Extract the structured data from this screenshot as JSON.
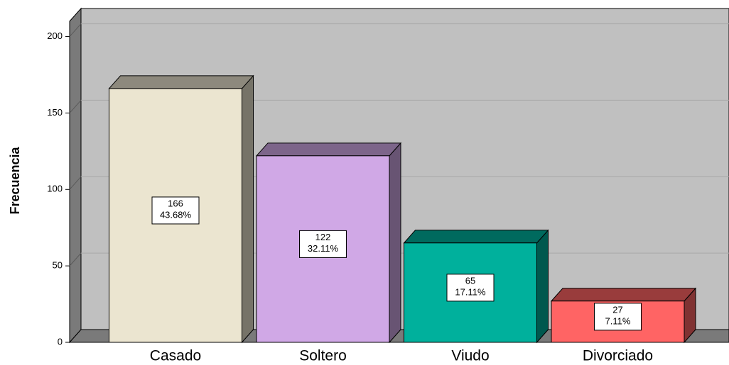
{
  "chart_data": {
    "type": "bar3d",
    "y_label": "Frecuencia",
    "categories": [
      "Casado",
      "Soltero",
      "Viudo",
      "Divorciado"
    ],
    "values": [
      166,
      122,
      65,
      27
    ],
    "percent_labels": [
      "43.68%",
      "32.11%",
      "17.11%",
      "7.11%"
    ],
    "colors": [
      "#ebe5d0",
      "#d0a8e6",
      "#00b09c",
      "#ff6464"
    ],
    "ylim": [
      0,
      210
    ],
    "yticks": [
      0,
      50,
      100,
      150,
      200
    ],
    "grid": true
  }
}
